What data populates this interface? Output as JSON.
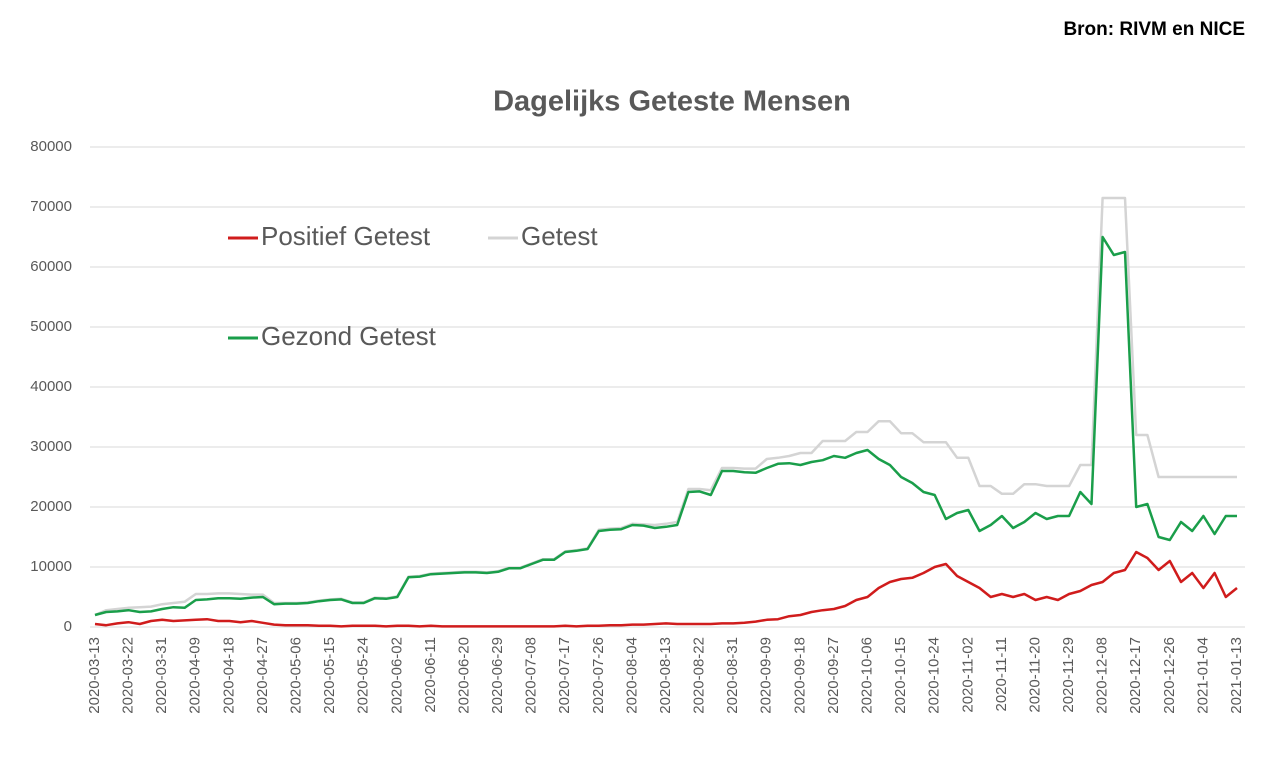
{
  "source": "Bron: RIVM en NICE",
  "chart_data": {
    "type": "line",
    "title": "Dagelijks Geteste Mensen",
    "categories": [
      "2020-03-13",
      null,
      null,
      "2020-03-22",
      null,
      null,
      "2020-03-31",
      null,
      null,
      "2020-04-09",
      null,
      null,
      "2020-04-18",
      null,
      null,
      "2020-04-27",
      null,
      null,
      "2020-05-06",
      null,
      null,
      "2020-05-15",
      null,
      null,
      "2020-05-24",
      null,
      null,
      "2020-06-02",
      null,
      null,
      "2020-06-11",
      null,
      null,
      "2020-06-20",
      null,
      null,
      "2020-06-29",
      null,
      null,
      "2020-07-08",
      null,
      null,
      "2020-07-17",
      null,
      null,
      "2020-07-26",
      null,
      null,
      "2020-08-04",
      null,
      null,
      "2020-08-13",
      null,
      null,
      "2020-08-22",
      null,
      null,
      "2020-08-31",
      null,
      null,
      "2020-09-09",
      null,
      null,
      "2020-09-18",
      null,
      null,
      "2020-09-27",
      null,
      null,
      "2020-10-06",
      null,
      null,
      "2020-10-15",
      null,
      null,
      "2020-10-24",
      null,
      null,
      "2020-11-02",
      null,
      null,
      "2020-11-11",
      null,
      null,
      "2020-11-20",
      null,
      null,
      "2020-11-29",
      null,
      null,
      "2020-12-08",
      null,
      null,
      "2020-12-17",
      null,
      null,
      "2020-12-26",
      null,
      null,
      "2021-01-04",
      null,
      null,
      "2021-01-13"
    ],
    "series": [
      {
        "name": "Positief Getest",
        "color": "#d01c1c",
        "values": [
          500,
          300,
          600,
          800,
          500,
          1000,
          1200,
          1000,
          1100,
          1200,
          1300,
          1000,
          1000,
          800,
          1000,
          700,
          400,
          300,
          300,
          300,
          200,
          200,
          100,
          200,
          200,
          200,
          100,
          200,
          200,
          100,
          200,
          100,
          100,
          100,
          100,
          100,
          100,
          100,
          100,
          100,
          100,
          100,
          200,
          100,
          200,
          200,
          300,
          300,
          400,
          400,
          500,
          600,
          500,
          500,
          500,
          500,
          600,
          600,
          700,
          900,
          1200,
          1300,
          1800,
          2000,
          2500,
          2800,
          3000,
          3500,
          4500,
          5000,
          6500,
          7500,
          8000,
          8200,
          9000,
          10000,
          10500,
          8500,
          7500,
          6500,
          5000,
          5500,
          5000,
          5500,
          4500,
          5000,
          4500,
          5500,
          6000,
          7000,
          7500,
          9000,
          9500,
          12500,
          11500,
          9500,
          11000,
          7500,
          9000,
          6500,
          9000,
          5000,
          6500
        ]
      },
      {
        "name": "Getest",
        "color": "#d4d4d4",
        "values": [
          2000,
          2800,
          3000,
          3200,
          3300,
          3400,
          3800,
          4000,
          4200,
          5500,
          5500,
          5600,
          5600,
          5500,
          5400,
          5400,
          4000,
          4000,
          4000,
          4100,
          4400,
          4600,
          4700,
          4100,
          4100,
          4900,
          4800,
          5100,
          8400,
          8500,
          8900,
          9000,
          9100,
          9200,
          9200,
          9100,
          9300,
          9900,
          9900,
          10600,
          11300,
          11300,
          12600,
          12800,
          13100,
          16200,
          16400,
          16500,
          17200,
          17100,
          17000,
          17200,
          17500,
          23000,
          23000,
          22800,
          26500,
          26500,
          26400,
          26400,
          28000,
          28200,
          28500,
          29000,
          29000,
          31000,
          31000,
          31000,
          32500,
          32500,
          34300,
          34300,
          32300,
          32300,
          30800,
          30800,
          30800,
          28200,
          28200,
          23500,
          23500,
          22200,
          22200,
          23800,
          23800,
          23500,
          23500,
          23500,
          27000,
          27000,
          71500,
          71500,
          71500,
          32000,
          32000,
          25000,
          25000,
          25000,
          25000,
          25000,
          25000,
          25000,
          25000
        ]
      },
      {
        "name": "Gezond Getest",
        "color": "#1a9e4a",
        "values": [
          2000,
          2500,
          2600,
          2800,
          2500,
          2600,
          3000,
          3300,
          3200,
          4500,
          4600,
          4800,
          4800,
          4700,
          4900,
          5000,
          3800,
          3900,
          3900,
          4000,
          4300,
          4500,
          4600,
          4000,
          4000,
          4800,
          4700,
          5000,
          8300,
          8400,
          8800,
          8900,
          9000,
          9100,
          9100,
          9000,
          9200,
          9800,
          9800,
          10500,
          11200,
          11200,
          12500,
          12700,
          13000,
          16000,
          16200,
          16300,
          17000,
          16900,
          16500,
          16700,
          17000,
          22500,
          22600,
          22000,
          26000,
          26000,
          25800,
          25700,
          26500,
          27200,
          27300,
          27000,
          27500,
          27800,
          28500,
          28200,
          29000,
          29500,
          28000,
          27000,
          25000,
          24000,
          22500,
          22000,
          18000,
          19000,
          19500,
          16000,
          17000,
          18500,
          16500,
          17500,
          19000,
          18000,
          18500,
          18500,
          22500,
          20500,
          65000,
          62000,
          62500,
          20000,
          20500,
          15000,
          14500,
          17500,
          16000,
          18500,
          15500,
          18500,
          18500
        ]
      }
    ],
    "ylim": [
      0,
      80000
    ],
    "yticks": [
      0,
      10000,
      20000,
      30000,
      40000,
      50000,
      60000,
      70000,
      80000
    ],
    "grid": true
  }
}
